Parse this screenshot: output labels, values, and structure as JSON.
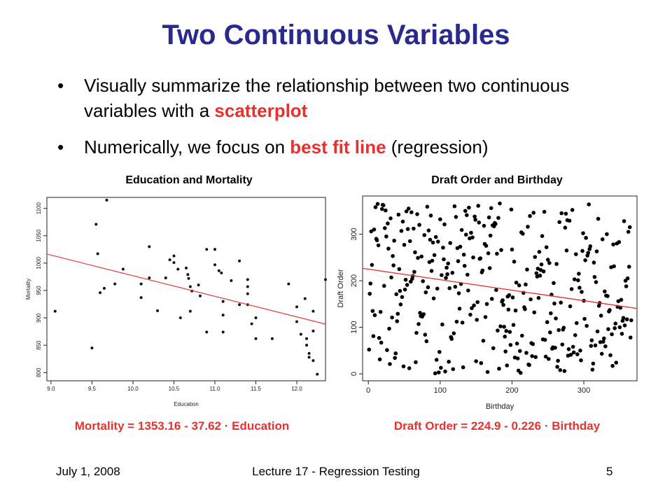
{
  "slide": {
    "title": "Two Continuous Variables",
    "bullet_char": "•",
    "bullets": [
      {
        "pre": "Visually summarize the relationship between two continuous variables with a ",
        "highlight": "scatterplot",
        "post": ""
      },
      {
        "pre": "Numerically, we focus on ",
        "highlight": "best fit line",
        "post": " (regression)"
      }
    ],
    "highlight_color": "#e6322e",
    "title_color": "#2a2a8c"
  },
  "footer": {
    "date": "July 1, 2008",
    "lecture": "Lecture 17 - Regression Testing",
    "page": "5"
  },
  "chart_data": [
    {
      "type": "scatter",
      "title": "Education and Mortality",
      "xlabel": "Education",
      "ylabel": "Mortality",
      "xlim": [
        8.95,
        12.35
      ],
      "ylim": [
        785,
        1120
      ],
      "xticks": [
        9.0,
        9.5,
        10.0,
        10.5,
        11.0,
        11.5,
        12.0
      ],
      "xtick_labels": [
        "9.0",
        "9.5",
        "10.0",
        "10.5",
        "11.0",
        "11.5",
        "12.0"
      ],
      "yticks": [
        800,
        850,
        900,
        950,
        1000,
        1050,
        1100
      ],
      "ytick_labels": [
        "800",
        "850",
        "900",
        "950",
        "1000",
        "1050",
        "1100"
      ],
      "regression": {
        "intercept": 1353.16,
        "slope": -37.62
      },
      "equation": "Mortality = 1353.16 - 37.62 · Education",
      "line_color": "#e53935",
      "point_color": "#111111",
      "points": [
        [
          9.05,
          912
        ],
        [
          9.5,
          845
        ],
        [
          9.55,
          1071
        ],
        [
          9.57,
          1017
        ],
        [
          9.6,
          946
        ],
        [
          9.65,
          954
        ],
        [
          9.68,
          1115
        ],
        [
          9.78,
          962
        ],
        [
          9.88,
          989
        ],
        [
          10.1,
          962
        ],
        [
          10.1,
          937
        ],
        [
          10.2,
          1030
        ],
        [
          10.2,
          973
        ],
        [
          10.3,
          913
        ],
        [
          10.4,
          973
        ],
        [
          10.45,
          1006
        ],
        [
          10.5,
          1013
        ],
        [
          10.5,
          1001
        ],
        [
          10.55,
          989
        ],
        [
          10.58,
          900
        ],
        [
          10.65,
          991
        ],
        [
          10.67,
          979
        ],
        [
          10.68,
          972
        ],
        [
          10.7,
          957
        ],
        [
          10.72,
          949
        ],
        [
          10.7,
          912
        ],
        [
          10.8,
          960
        ],
        [
          10.82,
          940
        ],
        [
          10.9,
          1025
        ],
        [
          10.9,
          874
        ],
        [
          11.0,
          1025
        ],
        [
          11.0,
          997
        ],
        [
          11.05,
          986
        ],
        [
          11.08,
          982
        ],
        [
          11.1,
          930
        ],
        [
          11.1,
          905
        ],
        [
          11.1,
          874
        ],
        [
          11.2,
          968
        ],
        [
          11.3,
          1004
        ],
        [
          11.3,
          924
        ],
        [
          11.4,
          970
        ],
        [
          11.4,
          957
        ],
        [
          11.4,
          944
        ],
        [
          11.4,
          924
        ],
        [
          11.45,
          889
        ],
        [
          11.5,
          900
        ],
        [
          11.5,
          862
        ],
        [
          11.7,
          862
        ],
        [
          11.9,
          962
        ],
        [
          12.0,
          920
        ],
        [
          12.0,
          893
        ],
        [
          12.05,
          870
        ],
        [
          12.1,
          935
        ],
        [
          12.12,
          862
        ],
        [
          12.12,
          850
        ],
        [
          12.15,
          828
        ],
        [
          12.15,
          835
        ],
        [
          12.2,
          912
        ],
        [
          12.2,
          876
        ],
        [
          12.2,
          822
        ],
        [
          12.25,
          797
        ],
        [
          12.35,
          970
        ]
      ]
    },
    {
      "type": "scatter",
      "title": "Draft Order and Birthday",
      "xlabel": "Birthday",
      "ylabel": "Draft Order",
      "xlim": [
        -8,
        374
      ],
      "ylim": [
        -15,
        382
      ],
      "xticks": [
        0,
        100,
        200,
        300
      ],
      "xtick_labels": [
        "0",
        "100",
        "200",
        "300"
      ],
      "yticks": [
        0,
        100,
        200,
        300
      ],
      "ytick_labels": [
        "0",
        "100",
        "200",
        "300"
      ],
      "regression": {
        "intercept": 224.9,
        "slope": -0.226
      },
      "equation": "Draft Order = 224.9 - 0.226 · Birthday",
      "line_color": "#e53935",
      "point_color": "#000000",
      "point_count": 366,
      "points_note": "366 points, one per birthday"
    }
  ]
}
